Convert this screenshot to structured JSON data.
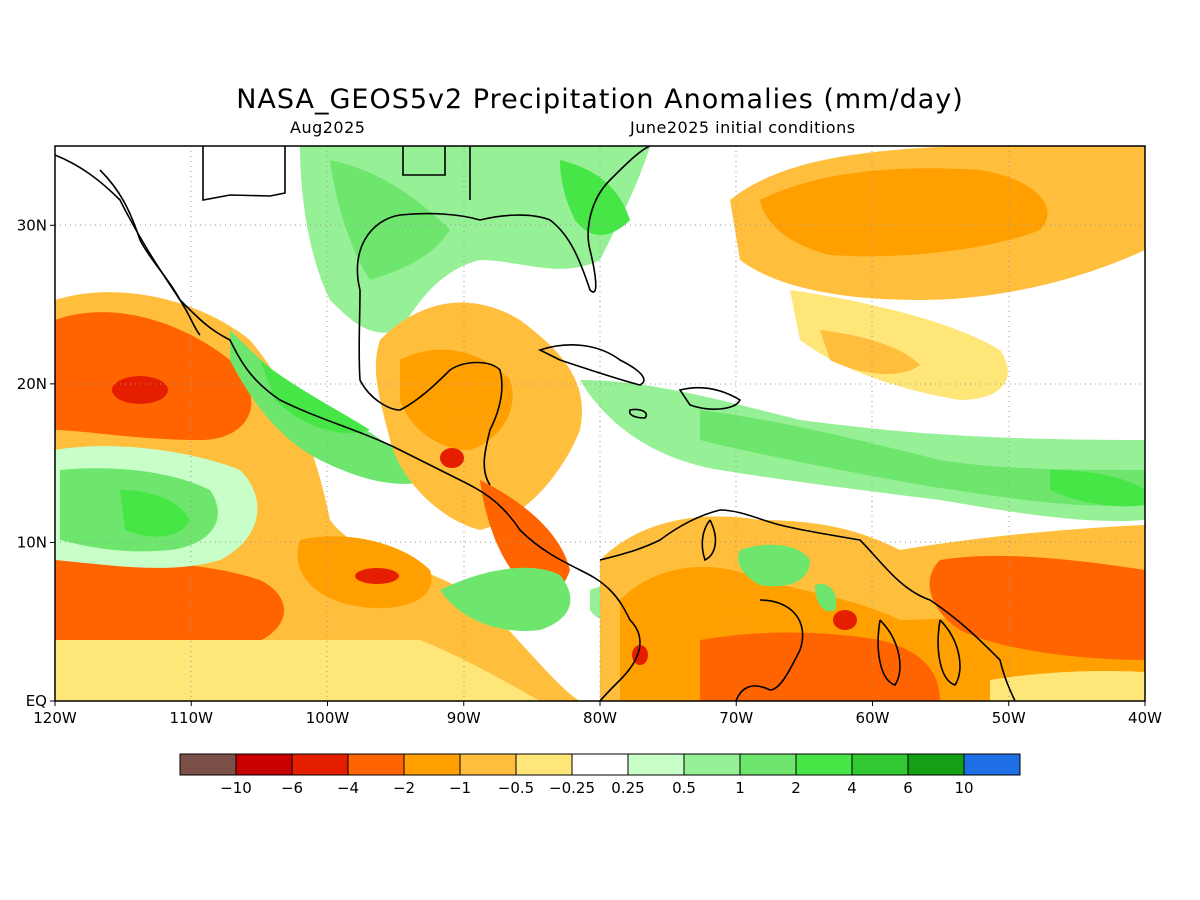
{
  "title": "NASA_GEOS5v2 Precipitation Anomalies (mm/day)",
  "subtitle_left": "Aug2025",
  "subtitle_right": "June2025 initial conditions",
  "map": {
    "lon_range": [
      -120,
      -40
    ],
    "lat_range": [
      0,
      35
    ],
    "lon_ticks": [
      {
        "value": -120,
        "label": "120W"
      },
      {
        "value": -110,
        "label": "110W"
      },
      {
        "value": -100,
        "label": "100W"
      },
      {
        "value": -90,
        "label": "90W"
      },
      {
        "value": -80,
        "label": "80W"
      },
      {
        "value": -70,
        "label": "70W"
      },
      {
        "value": -60,
        "label": "60W"
      },
      {
        "value": -50,
        "label": "50W"
      },
      {
        "value": -40,
        "label": "40W"
      }
    ],
    "lat_ticks": [
      {
        "value": 0,
        "label": "EQ"
      },
      {
        "value": 10,
        "label": "10N"
      },
      {
        "value": 20,
        "label": "20N"
      },
      {
        "value": 30,
        "label": "30N"
      }
    ],
    "grid": "dotted"
  },
  "colorbar": {
    "colors": [
      "#7a5048",
      "#c80000",
      "#e61e00",
      "#ff6400",
      "#ffa000",
      "#ffbe3c",
      "#ffe678",
      "#ffffff",
      "#c8ffc8",
      "#96f096",
      "#6ee66e",
      "#46e646",
      "#32c832",
      "#14a014",
      "#1e6ee6"
    ],
    "labels": [
      "-10",
      "-6",
      "-4",
      "-2",
      "-1",
      "-0.5",
      "-0.25",
      "0.25",
      "0.5",
      "1",
      "2",
      "4",
      "6",
      "10"
    ]
  }
}
